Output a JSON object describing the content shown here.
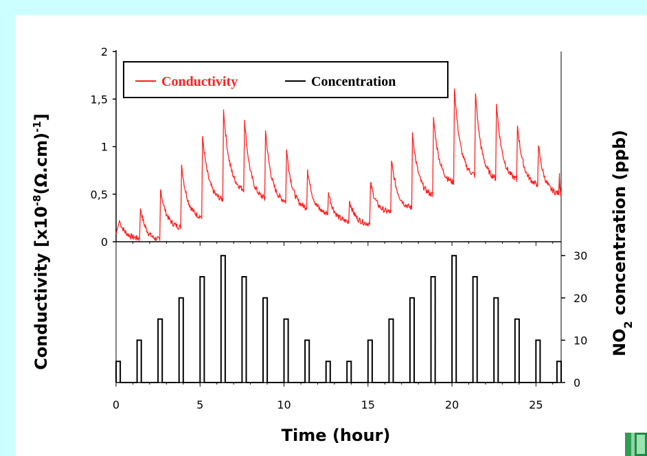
{
  "chart_data": {
    "type": "line",
    "xlabel": "Time (hour)",
    "xlim": [
      0,
      26.5
    ],
    "xticks": [
      "0",
      "5",
      "10",
      "15",
      "20",
      "25"
    ],
    "legend": {
      "placement": "top-left",
      "items": [
        "Conductivity",
        "Concentration"
      ]
    },
    "panels": [
      {
        "name": "conductivity",
        "ylabel": "Conductivity [x10-8(Ω.cm)-1]",
        "ylim": [
          0,
          2
        ],
        "yticks": [
          "0",
          "0,5",
          "1",
          "1,5",
          "2"
        ],
        "color": "#ff2020",
        "series": [
          {
            "name": "Conductivity",
            "peaks": [
              {
                "t": 0.2,
                "v": 0.22
              },
              {
                "t": 1.45,
                "v": 0.35
              },
              {
                "t": 2.65,
                "v": 0.55
              },
              {
                "t": 3.9,
                "v": 0.81
              },
              {
                "t": 5.15,
                "v": 1.11
              },
              {
                "t": 6.4,
                "v": 1.39
              },
              {
                "t": 7.65,
                "v": 1.28
              },
              {
                "t": 8.9,
                "v": 1.17
              },
              {
                "t": 10.15,
                "v": 0.97
              },
              {
                "t": 11.4,
                "v": 0.76
              },
              {
                "t": 12.65,
                "v": 0.52
              },
              {
                "t": 13.9,
                "v": 0.43
              },
              {
                "t": 15.15,
                "v": 0.62
              },
              {
                "t": 16.4,
                "v": 0.85
              },
              {
                "t": 17.65,
                "v": 1.15
              },
              {
                "t": 18.9,
                "v": 1.31
              },
              {
                "t": 20.15,
                "v": 1.61
              },
              {
                "t": 21.4,
                "v": 1.56
              },
              {
                "t": 22.65,
                "v": 1.45
              },
              {
                "t": 23.9,
                "v": 1.22
              },
              {
                "t": 25.15,
                "v": 1.01
              },
              {
                "t": 26.4,
                "v": 0.72
              }
            ],
            "troughs": [
              {
                "t": 0.0,
                "v": 0.08
              },
              {
                "t": 1.4,
                "v": 0.03
              },
              {
                "t": 2.6,
                "v": 0.01
              },
              {
                "t": 3.85,
                "v": 0.14
              },
              {
                "t": 5.1,
                "v": 0.24
              },
              {
                "t": 6.35,
                "v": 0.42
              },
              {
                "t": 7.6,
                "v": 0.52
              },
              {
                "t": 8.85,
                "v": 0.43
              },
              {
                "t": 10.1,
                "v": 0.4
              },
              {
                "t": 11.35,
                "v": 0.34
              },
              {
                "t": 12.6,
                "v": 0.28
              },
              {
                "t": 13.85,
                "v": 0.2
              },
              {
                "t": 15.1,
                "v": 0.18
              },
              {
                "t": 16.35,
                "v": 0.3
              },
              {
                "t": 17.6,
                "v": 0.34
              },
              {
                "t": 18.85,
                "v": 0.47
              },
              {
                "t": 20.1,
                "v": 0.6
              },
              {
                "t": 21.35,
                "v": 0.67
              },
              {
                "t": 22.6,
                "v": 0.64
              },
              {
                "t": 23.85,
                "v": 0.63
              },
              {
                "t": 25.1,
                "v": 0.58
              },
              {
                "t": 26.35,
                "v": 0.49
              }
            ]
          }
        ]
      },
      {
        "name": "concentration",
        "ylabel": "NO2 concentration (ppb)",
        "ylim": [
          0,
          31.5
        ],
        "yticks": [
          "0",
          "10",
          "20",
          "30"
        ],
        "color": "#000000",
        "series": [
          {
            "name": "Concentration",
            "pulse_width_hours": 0.25,
            "pulses": [
              {
                "t": 0.0,
                "v": 5
              },
              {
                "t": 1.25,
                "v": 10
              },
              {
                "t": 2.5,
                "v": 15
              },
              {
                "t": 3.75,
                "v": 20
              },
              {
                "t": 5.0,
                "v": 25
              },
              {
                "t": 6.25,
                "v": 30
              },
              {
                "t": 7.5,
                "v": 25
              },
              {
                "t": 8.75,
                "v": 20
              },
              {
                "t": 10.0,
                "v": 15
              },
              {
                "t": 11.25,
                "v": 10
              },
              {
                "t": 12.5,
                "v": 5
              },
              {
                "t": 13.75,
                "v": 5
              },
              {
                "t": 15.0,
                "v": 10
              },
              {
                "t": 16.25,
                "v": 15
              },
              {
                "t": 17.5,
                "v": 20
              },
              {
                "t": 18.75,
                "v": 25
              },
              {
                "t": 20.0,
                "v": 30
              },
              {
                "t": 21.25,
                "v": 25
              },
              {
                "t": 22.5,
                "v": 20
              },
              {
                "t": 23.75,
                "v": 15
              },
              {
                "t": 25.0,
                "v": 10
              },
              {
                "t": 26.25,
                "v": 5
              }
            ]
          }
        ]
      }
    ]
  }
}
